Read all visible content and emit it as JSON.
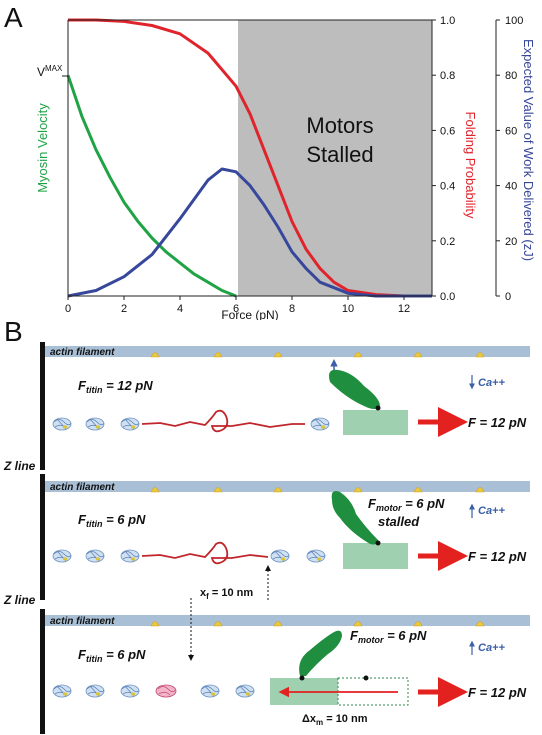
{
  "panel_a": {
    "letter": "A",
    "stalled_line1": "Motors",
    "stalled_line2": "Stalled",
    "vmax_prefix": "V",
    "vmax_sup": "MAX",
    "colors": {
      "green": "#1fa345",
      "red": "#e0242c",
      "blue": "#37479b",
      "stalled": "#bdbdbd"
    }
  },
  "chart_data": {
    "type": "line",
    "xlabel": "Force (pN)",
    "xlim": [
      0,
      13
    ],
    "x_ticks": [
      "0",
      "2",
      "4",
      "6",
      "8",
      "10",
      "12"
    ],
    "ylabel_left": "Myosin Velocity",
    "ylabel_right1": "Folding Probability",
    "ylim_right1": [
      0,
      1
    ],
    "y_ticks_right1": [
      "0.0",
      "0.2",
      "0.4",
      "0.6",
      "0.8",
      "1.0"
    ],
    "ylabel_right2": "Expected Value of Work Delivered (zJ)",
    "ylim_right2": [
      0,
      100
    ],
    "y_ticks_right2": [
      "0",
      "20",
      "40",
      "60",
      "80",
      "100"
    ],
    "shaded_region": {
      "label": "Motors Stalled",
      "x_range": [
        6,
        13
      ]
    },
    "series": [
      {
        "name": "Myosin Velocity",
        "color": "#1fa345",
        "scale": "folding",
        "x": [
          0,
          0.5,
          1,
          1.5,
          2,
          2.5,
          3,
          3.5,
          4,
          4.5,
          5,
          5.5,
          6
        ],
        "y": [
          0.8,
          0.65,
          0.53,
          0.43,
          0.34,
          0.27,
          0.21,
          0.16,
          0.12,
          0.08,
          0.05,
          0.02,
          0.0
        ]
      },
      {
        "name": "Folding Probability",
        "color": "#e0242c",
        "scale": "folding",
        "x": [
          0,
          1,
          2,
          3,
          4,
          5,
          6,
          6.5,
          7,
          7.5,
          8,
          8.5,
          9,
          9.5,
          10,
          11,
          12,
          13
        ],
        "y": [
          1.0,
          1.0,
          0.995,
          0.98,
          0.95,
          0.88,
          0.76,
          0.66,
          0.53,
          0.4,
          0.27,
          0.17,
          0.1,
          0.05,
          0.02,
          0.005,
          0.0,
          0.0
        ]
      },
      {
        "name": "Expected Value of Work Delivered",
        "color": "#37479b",
        "scale": "work",
        "x": [
          0,
          1,
          2,
          3,
          4,
          5,
          5.5,
          6,
          6.5,
          7,
          7.5,
          8,
          8.5,
          9,
          9.5,
          10,
          11,
          12,
          13
        ],
        "y": [
          0,
          2,
          7,
          15,
          28,
          42,
          46,
          45,
          40,
          33,
          25,
          16,
          10,
          5,
          3,
          1,
          0,
          0,
          0
        ]
      }
    ]
  },
  "panel_b": {
    "letter": "B",
    "actin_label": "actin filament",
    "z_line": "Z line",
    "row1": {
      "f_titin": "F",
      "f_titin_sub": "titin",
      "f_titin_val": " = 12 pN",
      "ca": "Ca++",
      "force": "F = 12 pN"
    },
    "row2": {
      "f_titin": "F",
      "f_titin_sub": "titin",
      "f_titin_val": " = 6 pN",
      "f_motor": "F",
      "f_motor_sub": "motor",
      "f_motor_val": " = 6 pN",
      "stalled": "stalled",
      "ca": "Ca++",
      "force": "F = 12 pN",
      "xf": "x",
      "xf_sub": "f",
      "xf_val": " = 10 nm"
    },
    "row3": {
      "f_titin": "F",
      "f_titin_sub": "titin",
      "f_titin_val": " = 6 pN",
      "f_motor": "F",
      "f_motor_sub": "motor",
      "f_motor_val": " = 6 pN",
      "ca": "Ca++",
      "force": "F = 12 pN",
      "dx": "Δx",
      "dx_sub": "m",
      "dx_val": " = 10 nm"
    }
  }
}
